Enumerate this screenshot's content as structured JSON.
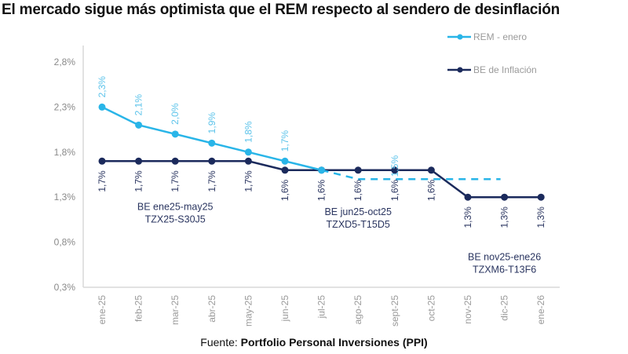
{
  "title": "El mercado sigue más optimista que el REM respecto al sendero de desinflación",
  "source": {
    "prefix": "Fuente: ",
    "name": "Portfolio Personal Inversiones (PPI)"
  },
  "chart_data": {
    "type": "line",
    "title": "El mercado sigue más optimista que el REM respecto al sendero de desinflación",
    "xlabel": "",
    "ylabel": "",
    "categories": [
      "ene-25",
      "feb-25",
      "mar-25",
      "abr-25",
      "may-25",
      "jun-25",
      "jul-25",
      "ago-25",
      "sept-25",
      "oct-25",
      "nov-25",
      "dic-25",
      "ene-26"
    ],
    "ylim": [
      0.3,
      2.8
    ],
    "yticks": [
      0.3,
      0.8,
      1.3,
      1.8,
      2.3,
      2.8
    ],
    "ytick_labels": [
      "0,3%",
      "0,8%",
      "1,3%",
      "1,8%",
      "2,3%",
      "2,8%"
    ],
    "grid": false,
    "legend_position": "top-right",
    "series": [
      {
        "name": "REM - enero",
        "color": "#29b5e8",
        "values": [
          2.3,
          2.1,
          2.0,
          1.9,
          1.8,
          1.7,
          1.6,
          null,
          null,
          null,
          null,
          null,
          null
        ],
        "labels": [
          "2,3%",
          "2,1%",
          "2,0%",
          "1,9%",
          "1,8%",
          "1,7%",
          "",
          "",
          "",
          "",
          "",
          "",
          ""
        ],
        "dashed_extension": {
          "from_index": 6,
          "values": [
            1.6,
            1.5,
            1.5,
            1.5,
            1.5,
            1.5
          ],
          "end_index": 11,
          "label": "1,5%",
          "label_index": 8
        }
      },
      {
        "name": "BE de Inflación",
        "color": "#1b2a5c",
        "values": [
          1.7,
          1.7,
          1.7,
          1.7,
          1.7,
          1.6,
          1.6,
          1.6,
          1.6,
          1.6,
          1.3,
          1.3,
          1.3
        ],
        "labels": [
          "1,7%",
          "1,7%",
          "1,7%",
          "1,7%",
          "1,7%",
          "1,6%",
          "1,6%",
          "1,6%",
          "1,6%",
          "1,6%",
          "1,3%",
          "1,3%",
          "1,3%"
        ]
      }
    ],
    "annotations": [
      {
        "line1": "BE ene25-may25",
        "line2": "TZX25-S30J5",
        "anchor_index": 2,
        "y_value": 1.16
      },
      {
        "line1": "BE jun25-oct25",
        "line2": "TZXD5-T15D5",
        "anchor_index": 7,
        "y_value": 1.1
      },
      {
        "line1": "BE nov25-ene26",
        "line2": "TZXM6-T13F6",
        "anchor_index": 11,
        "y_value": 0.6
      }
    ]
  }
}
